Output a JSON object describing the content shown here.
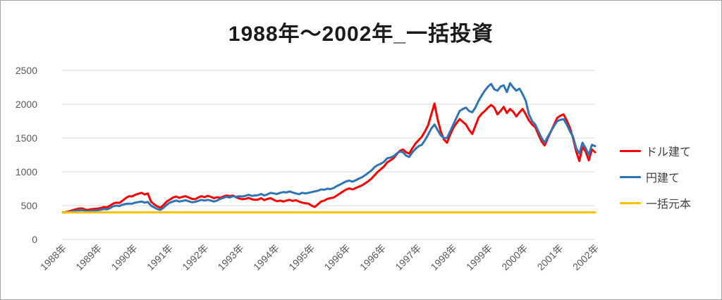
{
  "chart_data": {
    "type": "line",
    "title": "1988年～2002年_一括投資",
    "xlabel": "",
    "ylabel": "",
    "y_range": [
      0,
      2500
    ],
    "y_ticks": [
      0,
      500,
      1000,
      1500,
      2000,
      2500
    ],
    "grid": "horizontal",
    "legend_position": "right",
    "x_tick_labels": [
      "1988年",
      "1989年",
      "1990年",
      "1991年",
      "1992年",
      "1993年",
      "1994年",
      "1995年",
      "1996年",
      "1996年",
      "1997年",
      "1998年",
      "1999年",
      "2000年",
      "2001年",
      "2002年"
    ],
    "series": [
      {
        "name": "ドル建て",
        "color": "#ff0000",
        "values": [
          400,
          405,
          415,
          430,
          445,
          455,
          460,
          445,
          435,
          448,
          452,
          455,
          465,
          480,
          475,
          500,
          530,
          545,
          540,
          575,
          610,
          640,
          635,
          660,
          675,
          690,
          665,
          680,
          560,
          520,
          490,
          470,
          510,
          560,
          590,
          620,
          635,
          615,
          630,
          640,
          620,
          600,
          595,
          620,
          640,
          625,
          645,
          630,
          610,
          625,
          615,
          635,
          650,
          640,
          650,
          625,
          605,
          595,
          600,
          615,
          595,
          585,
          590,
          610,
          580,
          600,
          610,
          585,
          565,
          575,
          560,
          575,
          585,
          570,
          580,
          560,
          545,
          535,
          530,
          500,
          480,
          520,
          560,
          575,
          600,
          610,
          620,
          650,
          680,
          710,
          740,
          755,
          740,
          760,
          780,
          800,
          830,
          860,
          900,
          950,
          1000,
          1040,
          1080,
          1140,
          1170,
          1200,
          1260,
          1310,
          1330,
          1290,
          1270,
          1350,
          1420,
          1470,
          1520,
          1600,
          1690,
          1850,
          2010,
          1780,
          1600,
          1480,
          1430,
          1550,
          1650,
          1720,
          1780,
          1740,
          1700,
          1620,
          1560,
          1680,
          1800,
          1860,
          1900,
          1950,
          1990,
          1950,
          1850,
          1900,
          1960,
          1870,
          1930,
          1890,
          1820,
          1880,
          1930,
          1850,
          1760,
          1700,
          1660,
          1550,
          1450,
          1390,
          1500,
          1600,
          1700,
          1800,
          1830,
          1850,
          1760,
          1650,
          1500,
          1300,
          1160,
          1370,
          1300,
          1170,
          1330,
          1290
        ]
      },
      {
        "name": "円建て",
        "color": "#2e75b6",
        "values": [
          400,
          398,
          405,
          415,
          425,
          430,
          435,
          425,
          415,
          425,
          428,
          430,
          438,
          450,
          445,
          462,
          490,
          500,
          495,
          515,
          525,
          530,
          528,
          545,
          552,
          560,
          545,
          555,
          500,
          475,
          450,
          437,
          470,
          510,
          545,
          560,
          575,
          560,
          570,
          580,
          565,
          550,
          555,
          570,
          585,
          575,
          585,
          575,
          560,
          575,
          600,
          615,
          630,
          620,
          640,
          630,
          640,
          635,
          645,
          660,
          645,
          650,
          655,
          672,
          650,
          668,
          690,
          680,
          672,
          690,
          700,
          695,
          710,
          695,
          680,
          670,
          690,
          680,
          690,
          700,
          710,
          720,
          740,
          735,
          750,
          745,
          760,
          790,
          810,
          835,
          860,
          870,
          855,
          875,
          900,
          920,
          950,
          985,
          1020,
          1070,
          1100,
          1120,
          1150,
          1200,
          1210,
          1230,
          1270,
          1300,
          1290,
          1240,
          1220,
          1290,
          1340,
          1380,
          1400,
          1470,
          1550,
          1640,
          1700,
          1620,
          1540,
          1500,
          1500,
          1600,
          1700,
          1800,
          1900,
          1930,
          1950,
          1900,
          1880,
          1950,
          2050,
          2130,
          2200,
          2260,
          2300,
          2220,
          2200,
          2260,
          2280,
          2180,
          2310,
          2250,
          2200,
          2230,
          2150,
          2050,
          1850,
          1750,
          1700,
          1600,
          1500,
          1430,
          1520,
          1600,
          1680,
          1750,
          1770,
          1780,
          1700,
          1600,
          1520,
          1350,
          1270,
          1430,
          1350,
          1250,
          1400,
          1380
        ]
      },
      {
        "name": "一括元本",
        "color": "#ffc000",
        "constant": 400
      }
    ]
  },
  "frame": {
    "background": "#ffffff",
    "border_color": "#a6a6a6",
    "gridline_color": "#d9d9d9",
    "axis_label_color": "#595959",
    "legend_text_color": "#404040",
    "title_color": "#1a1a1a"
  }
}
